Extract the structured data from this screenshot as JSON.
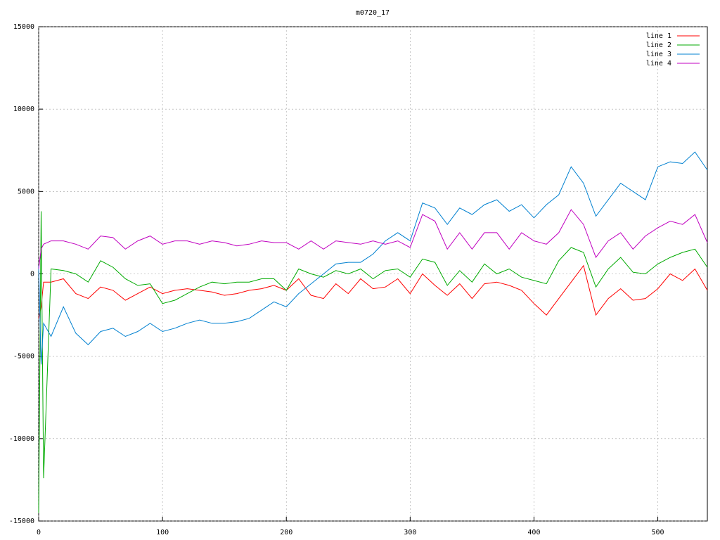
{
  "chart_data": {
    "type": "line",
    "title": "m0720_17",
    "x": [
      0,
      2,
      4,
      10,
      20,
      30,
      40,
      50,
      60,
      70,
      80,
      90,
      100,
      110,
      120,
      130,
      140,
      150,
      160,
      170,
      180,
      190,
      200,
      210,
      220,
      230,
      240,
      250,
      260,
      270,
      280,
      290,
      300,
      310,
      320,
      330,
      340,
      350,
      360,
      370,
      380,
      390,
      400,
      410,
      420,
      430,
      440,
      450,
      460,
      470,
      480,
      490,
      500,
      510,
      520,
      530,
      540
    ],
    "series": [
      {
        "name": "line 1",
        "color": "#ff0000",
        "values": [
          -2700,
          -2000,
          -500,
          -500,
          -300,
          -1200,
          -1500,
          -800,
          -1000,
          -1600,
          -1200,
          -800,
          -1200,
          -1000,
          -900,
          -1000,
          -1100,
          -1300,
          -1200,
          -1000,
          -900,
          -700,
          -1000,
          -300,
          -1300,
          -1500,
          -600,
          -1200,
          -300,
          -900,
          -800,
          -300,
          -1200,
          0,
          -700,
          -1300,
          -600,
          -1500,
          -600,
          -500,
          -700,
          -1000,
          -1800,
          -2500,
          -1500,
          -500,
          500,
          -2500,
          -1500,
          -900,
          -1600,
          -1500,
          -900,
          0,
          -400,
          300,
          -1000
        ]
      },
      {
        "name": "line 2",
        "color": "#00aa00",
        "values": [
          -14500,
          3800,
          -12400,
          300,
          200,
          0,
          -500,
          800,
          400,
          -300,
          -700,
          -600,
          -1800,
          -1600,
          -1200,
          -800,
          -500,
          -600,
          -500,
          -500,
          -300,
          -300,
          -1000,
          300,
          0,
          -200,
          200,
          0,
          300,
          -300,
          200,
          300,
          -200,
          900,
          700,
          -700,
          200,
          -500,
          600,
          0,
          300,
          -200,
          -400,
          -600,
          800,
          1600,
          1300,
          -800,
          300,
          1000,
          100,
          0,
          600,
          1000,
          1300,
          1500,
          400
        ]
      },
      {
        "name": "line 3",
        "color": "#0080d0",
        "values": [
          500,
          -5500,
          -3000,
          -3800,
          -2000,
          -3600,
          -4300,
          -3500,
          -3300,
          -3800,
          -3500,
          -3000,
          -3500,
          -3300,
          -3000,
          -2800,
          -3000,
          -3000,
          -2900,
          -2700,
          -2200,
          -1700,
          -2000,
          -1200,
          -600,
          0,
          600,
          700,
          700,
          1200,
          2000,
          2500,
          2000,
          4300,
          4000,
          3000,
          4000,
          3600,
          4200,
          4500,
          3800,
          4200,
          3400,
          4200,
          4800,
          6500,
          5500,
          3500,
          4500,
          5500,
          5000,
          4500,
          6500,
          6800,
          6700,
          7400,
          6300
        ]
      },
      {
        "name": "line 4",
        "color": "#c000c0",
        "values": [
          300,
          1500,
          1800,
          2000,
          2000,
          1800,
          1500,
          2300,
          2200,
          1500,
          2000,
          2300,
          1800,
          2000,
          2000,
          1800,
          2000,
          1900,
          1700,
          1800,
          2000,
          1900,
          1900,
          1500,
          2000,
          1500,
          2000,
          1900,
          1800,
          2000,
          1800,
          2000,
          1600,
          3600,
          3200,
          1500,
          2500,
          1500,
          2500,
          2500,
          1500,
          2500,
          2000,
          1800,
          2500,
          3900,
          3000,
          1000,
          2000,
          2500,
          1500,
          2300,
          2800,
          3200,
          3000,
          3600,
          1900
        ]
      }
    ],
    "xlim": [
      0,
      540
    ],
    "ylim": [
      -15000,
      15000
    ],
    "xticks": [
      0,
      100,
      200,
      300,
      400,
      500
    ],
    "yticks": [
      -15000,
      -10000,
      -5000,
      0,
      5000,
      10000,
      15000
    ],
    "grid": true,
    "legend": "top-right"
  }
}
